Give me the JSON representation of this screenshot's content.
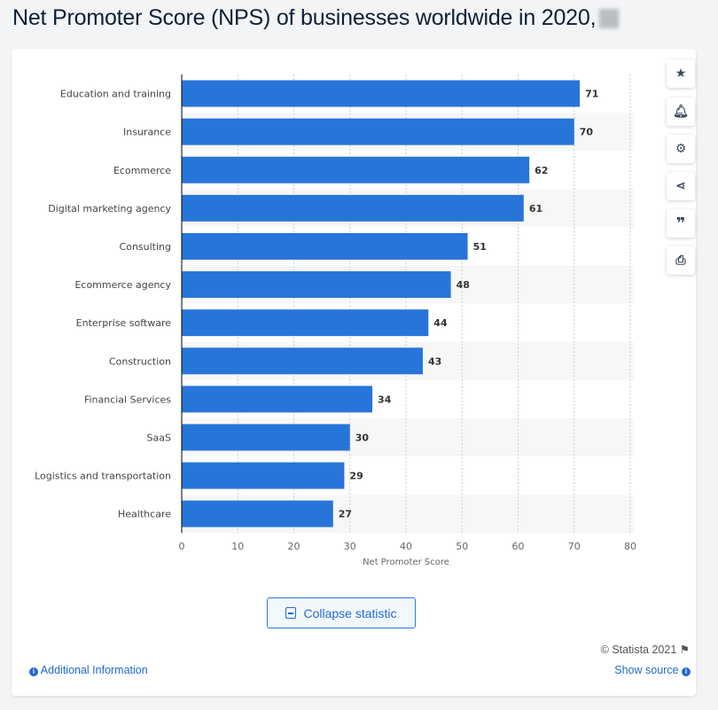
{
  "header": {
    "title": "Net Promoter Score (NPS) of businesses worldwide in 2020,"
  },
  "chart_data": {
    "type": "bar",
    "orientation": "horizontal",
    "categories": [
      "Education and training",
      "Insurance",
      "Ecommerce",
      "Digital marketing agency",
      "Consulting",
      "Ecommerce agency",
      "Enterprise software",
      "Construction",
      "Financial Services",
      "SaaS",
      "Logistics and transportation",
      "Healthcare"
    ],
    "values": [
      71,
      70,
      62,
      61,
      51,
      48,
      44,
      43,
      34,
      30,
      29,
      27
    ],
    "xlabel": "Net Promoter Score",
    "xlim": [
      0,
      80
    ],
    "xticks": [
      0,
      10,
      20,
      30,
      40,
      50,
      60,
      70,
      80
    ],
    "bar_color": "#2875d9",
    "grid": true,
    "data_labels": true
  },
  "toolbar": {
    "icons": [
      "star-icon",
      "bell-icon",
      "gear-icon",
      "share-icon",
      "quote-icon",
      "print-icon"
    ]
  },
  "footer": {
    "collapse_label": "Collapse statistic",
    "copyright": "© Statista 2021",
    "additional_info": "Additional Information",
    "show_source": "Show source"
  }
}
